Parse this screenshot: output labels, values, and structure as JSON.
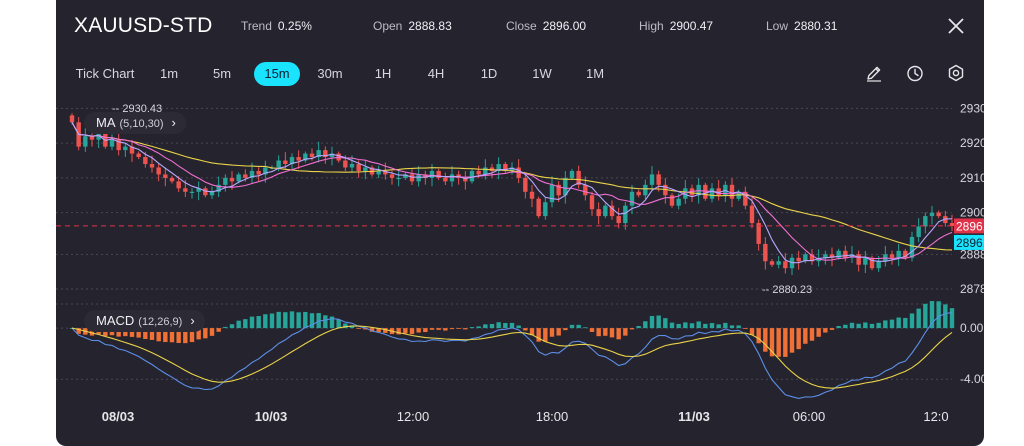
{
  "header": {
    "symbol": "XAUUSD-STD",
    "stats": [
      {
        "label": "Trend",
        "value": "0.25%"
      },
      {
        "label": "Open",
        "value": "2888.83"
      },
      {
        "label": "Close",
        "value": "2896.00"
      },
      {
        "label": "High",
        "value": "2900.47"
      },
      {
        "label": "Low",
        "value": "2880.31"
      }
    ]
  },
  "timeframes": [
    "Tick Chart",
    "1m",
    "5m",
    "15m",
    "30m",
    "1H",
    "4H",
    "1D",
    "1W",
    "1M"
  ],
  "active_timeframe": "15m",
  "tools": [
    "pencil-icon",
    "clock-icon",
    "settings-icon"
  ],
  "indicators": {
    "ma": {
      "name": "MA",
      "params": "(5,10,30)",
      "chevron": "›"
    },
    "macd": {
      "name": "MACD",
      "params": "(12,26,9)",
      "chevron": "›"
    }
  },
  "colors": {
    "background": "#25232d",
    "up": "#26a69a",
    "down": "#ef5350",
    "accent": "#19e3ff",
    "price_tag": "#e0334a",
    "ma5": "#b9a6ff",
    "ma10": "#f26fd4",
    "ma30": "#e9d34a",
    "macd_line": "#5b8fe8",
    "signal_line": "#e9d34a",
    "macd_hist_up": "#26a69a",
    "macd_hist_down": "#f07035"
  },
  "chart_data": {
    "type": "candlestick",
    "y_axis_ticks": [
      "2930.00",
      "2920.00",
      "2910.00",
      "2900.00",
      "2888.00",
      "2878.00"
    ],
    "y_axis_values": [
      2930,
      2920,
      2910,
      2900,
      2888,
      2878
    ],
    "ylim": [
      2876.0,
      2933.0
    ],
    "x_axis_labels": [
      "08/03",
      "10/03",
      "12:00",
      "18:00",
      "11/03",
      "06:00",
      "12:0"
    ],
    "max_label": "2930.43",
    "min_label": "2880.23",
    "last_price_tag": "2896.17",
    "close_tag": "2896.00",
    "closes": [
      2926,
      2919,
      2922,
      2921,
      2923,
      2919,
      2921,
      2918,
      2919,
      2917,
      2916,
      2914,
      2913,
      2911,
      2910,
      2909,
      2907,
      2906,
      2906,
      2907,
      2905,
      2906,
      2908,
      2910,
      2909,
      2911,
      2910,
      2912,
      2911,
      2913,
      2913,
      2915,
      2914,
      2916,
      2915,
      2917,
      2916,
      2918,
      2916,
      2917,
      2915,
      2913,
      2914,
      2912,
      2913,
      2911,
      2912,
      2911,
      2910,
      2910,
      2911,
      2909,
      2911,
      2910,
      2912,
      2910,
      2909,
      2911,
      2910,
      2909,
      2912,
      2911,
      2913,
      2912,
      2914,
      2912,
      2913,
      2910,
      2906,
      2904,
      2899,
      2903,
      2908,
      2905,
      2910,
      2912,
      2908,
      2905,
      2901,
      2899,
      2902,
      2899,
      2897,
      2902,
      2906,
      2905,
      2908,
      2911,
      2908,
      2905,
      2902,
      2904,
      2907,
      2905,
      2908,
      2904,
      2907,
      2905,
      2908,
      2904,
      2906,
      2902,
      2897,
      2891,
      2886,
      2885,
      2886,
      2884,
      2887,
      2886,
      2888,
      2886,
      2887,
      2888,
      2887,
      2889,
      2887,
      2888,
      2885,
      2887,
      2884,
      2886,
      2888,
      2887,
      2889,
      2887,
      2893,
      2896,
      2899,
      2900,
      2899,
      2897,
      2896.17
    ],
    "ma": {
      "periods": [
        5,
        10,
        30
      ]
    },
    "macd": {
      "params": [
        12,
        26,
        9
      ],
      "y_axis_ticks": [
        "0.00",
        "-4.00"
      ],
      "y_axis_values": [
        0,
        -4
      ],
      "ylim": [
        -5.0,
        2.2
      ]
    }
  }
}
